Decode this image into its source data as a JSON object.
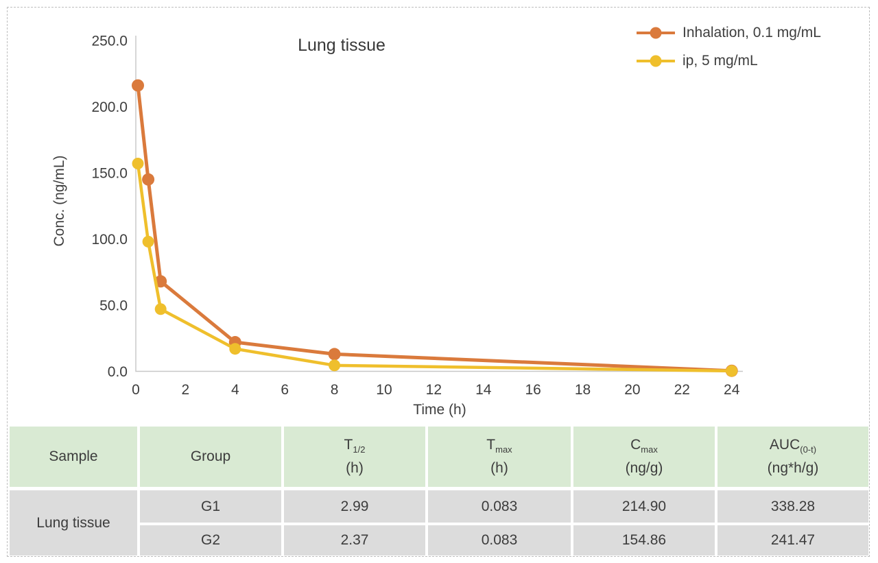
{
  "colors": {
    "header_bg": "#D9EAD3",
    "row_bg": "#DCDCDC",
    "frame_border": "#BDBDBD",
    "axis_color": "#C8C8C8",
    "series_orange": "#DA7A3C",
    "series_yellow": "#EFBF2C"
  },
  "chart_data": {
    "type": "line",
    "title": "Lung tissue",
    "xlabel": "Time (h)",
    "ylabel": "Conc. (ng/mL)",
    "xlim": [
      0,
      24.45
    ],
    "ylim": [
      0,
      250
    ],
    "x_ticks": [
      0,
      2,
      4,
      6,
      8,
      10,
      12,
      14,
      16,
      18,
      20,
      22,
      24
    ],
    "y_ticks": [
      0,
      50,
      100,
      150,
      200,
      250
    ],
    "y_tick_decimals": 1,
    "grid": false,
    "legend_position": "top-right",
    "series": [
      {
        "name": "Inhalation, 0.1 mg/mL",
        "color": "#DA7A3C",
        "x": [
          0.083,
          0.5,
          1,
          4,
          8,
          24
        ],
        "y": [
          216,
          145,
          68,
          22,
          13,
          0.4
        ]
      },
      {
        "name": "ip, 5 mg/mL",
        "color": "#EFBF2C",
        "x": [
          0.083,
          0.5,
          1,
          4,
          8,
          24
        ],
        "y": [
          157,
          98,
          47,
          17,
          4.5,
          0.3
        ]
      }
    ]
  },
  "table": {
    "columns": [
      {
        "label": "Sample",
        "sub": "",
        "unit": ""
      },
      {
        "label": "Group",
        "sub": "",
        "unit": ""
      },
      {
        "label": "T",
        "sub": "1/2",
        "unit": "(h)"
      },
      {
        "label": "T",
        "sub": "max",
        "unit": "(h)"
      },
      {
        "label": "C",
        "sub": "max",
        "unit": "(ng/g)"
      },
      {
        "label": "AUC",
        "sub": "(0-t)",
        "unit": "(ng*h/g)"
      }
    ],
    "sample": "Lung tissue",
    "rows": [
      {
        "group": "G1",
        "t_half": "2.99",
        "t_max": "0.083",
        "c_max": "214.90",
        "auc": "338.28"
      },
      {
        "group": "G2",
        "t_half": "2.37",
        "t_max": "0.083",
        "c_max": "154.86",
        "auc": "241.47"
      }
    ]
  }
}
